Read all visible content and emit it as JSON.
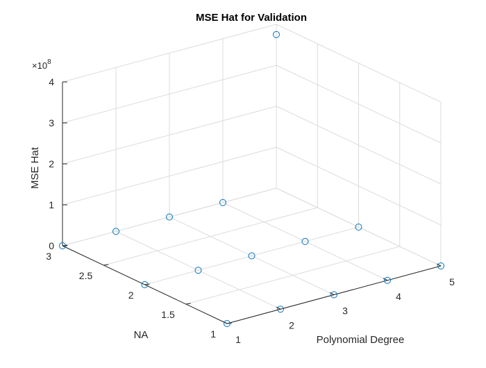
{
  "chart_data": {
    "type": "scatter3d",
    "title": "MSE Hat for Validation",
    "xlabel": "Polynomial Degree",
    "ylabel": "NA",
    "zlabel": "MSE Hat",
    "z_exponent_base": "×10",
    "z_exponent_power": "8",
    "xlim": [
      1,
      5
    ],
    "ylim": [
      1,
      3
    ],
    "zlim": [
      0,
      4
    ],
    "xticks": [
      "1",
      "2",
      "3",
      "4",
      "5"
    ],
    "yticks": [
      "1",
      "1.5",
      "2",
      "2.5",
      "3"
    ],
    "zticks": [
      "0",
      "1",
      "2",
      "3",
      "4"
    ],
    "grid": true,
    "marker_color": "#0072bd",
    "series": [
      {
        "points": [
          {
            "x": 1,
            "y": 1,
            "z": 0
          },
          {
            "x": 2,
            "y": 1,
            "z": 0
          },
          {
            "x": 3,
            "y": 1,
            "z": 0
          },
          {
            "x": 4,
            "y": 1,
            "z": 0
          },
          {
            "x": 5,
            "y": 1,
            "z": 0
          },
          {
            "x": 1,
            "y": 2,
            "z": 0
          },
          {
            "x": 2,
            "y": 2,
            "z": 0
          },
          {
            "x": 3,
            "y": 2,
            "z": 0
          },
          {
            "x": 4,
            "y": 2,
            "z": 0
          },
          {
            "x": 5,
            "y": 2,
            "z": 0
          },
          {
            "x": 1,
            "y": 3,
            "z": 0
          },
          {
            "x": 2,
            "y": 3,
            "z": 0
          },
          {
            "x": 3,
            "y": 3,
            "z": 0
          },
          {
            "x": 4,
            "y": 3,
            "z": 0
          },
          {
            "x": 5,
            "y": 3,
            "z": 375000000
          }
        ]
      }
    ]
  }
}
